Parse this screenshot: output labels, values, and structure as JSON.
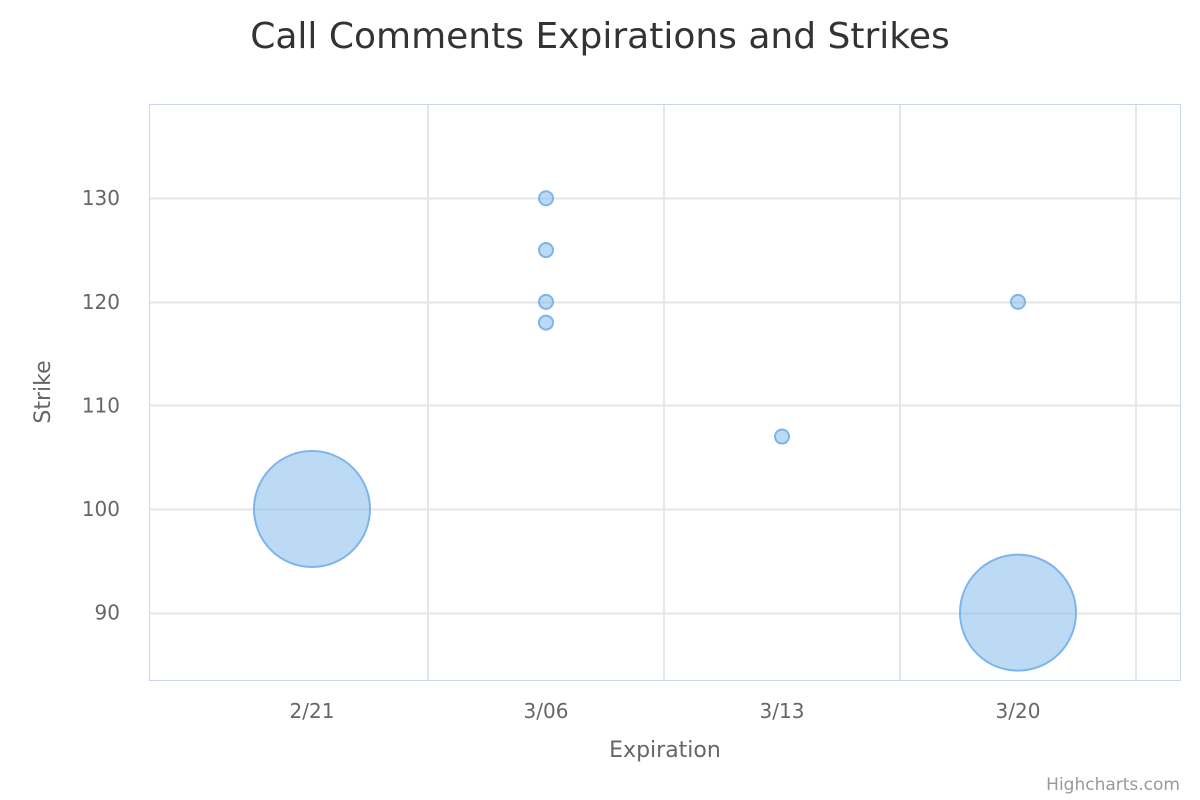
{
  "chart_data": {
    "type": "bubble",
    "title": "Call Comments Expirations and Strikes",
    "xlabel": "Expiration",
    "ylabel": "Strike",
    "categories": [
      "2/21",
      "3/06",
      "3/13",
      "3/20"
    ],
    "yticks": [
      90,
      100,
      110,
      120,
      130
    ],
    "ylim": [
      83.5,
      139
    ],
    "grid": true,
    "bubble_color": "#7cb5ec",
    "points": [
      {
        "category": "2/21",
        "strike": 100,
        "size": 25
      },
      {
        "category": "3/06",
        "strike": 130,
        "size": 1
      },
      {
        "category": "3/06",
        "strike": 125,
        "size": 1
      },
      {
        "category": "3/06",
        "strike": 120,
        "size": 1
      },
      {
        "category": "3/06",
        "strike": 118,
        "size": 1
      },
      {
        "category": "3/13",
        "strike": 107,
        "size": 1
      },
      {
        "category": "3/20",
        "strike": 120,
        "size": 1
      },
      {
        "category": "3/20",
        "strike": 90,
        "size": 25
      }
    ]
  },
  "credits": "Highcharts.com"
}
